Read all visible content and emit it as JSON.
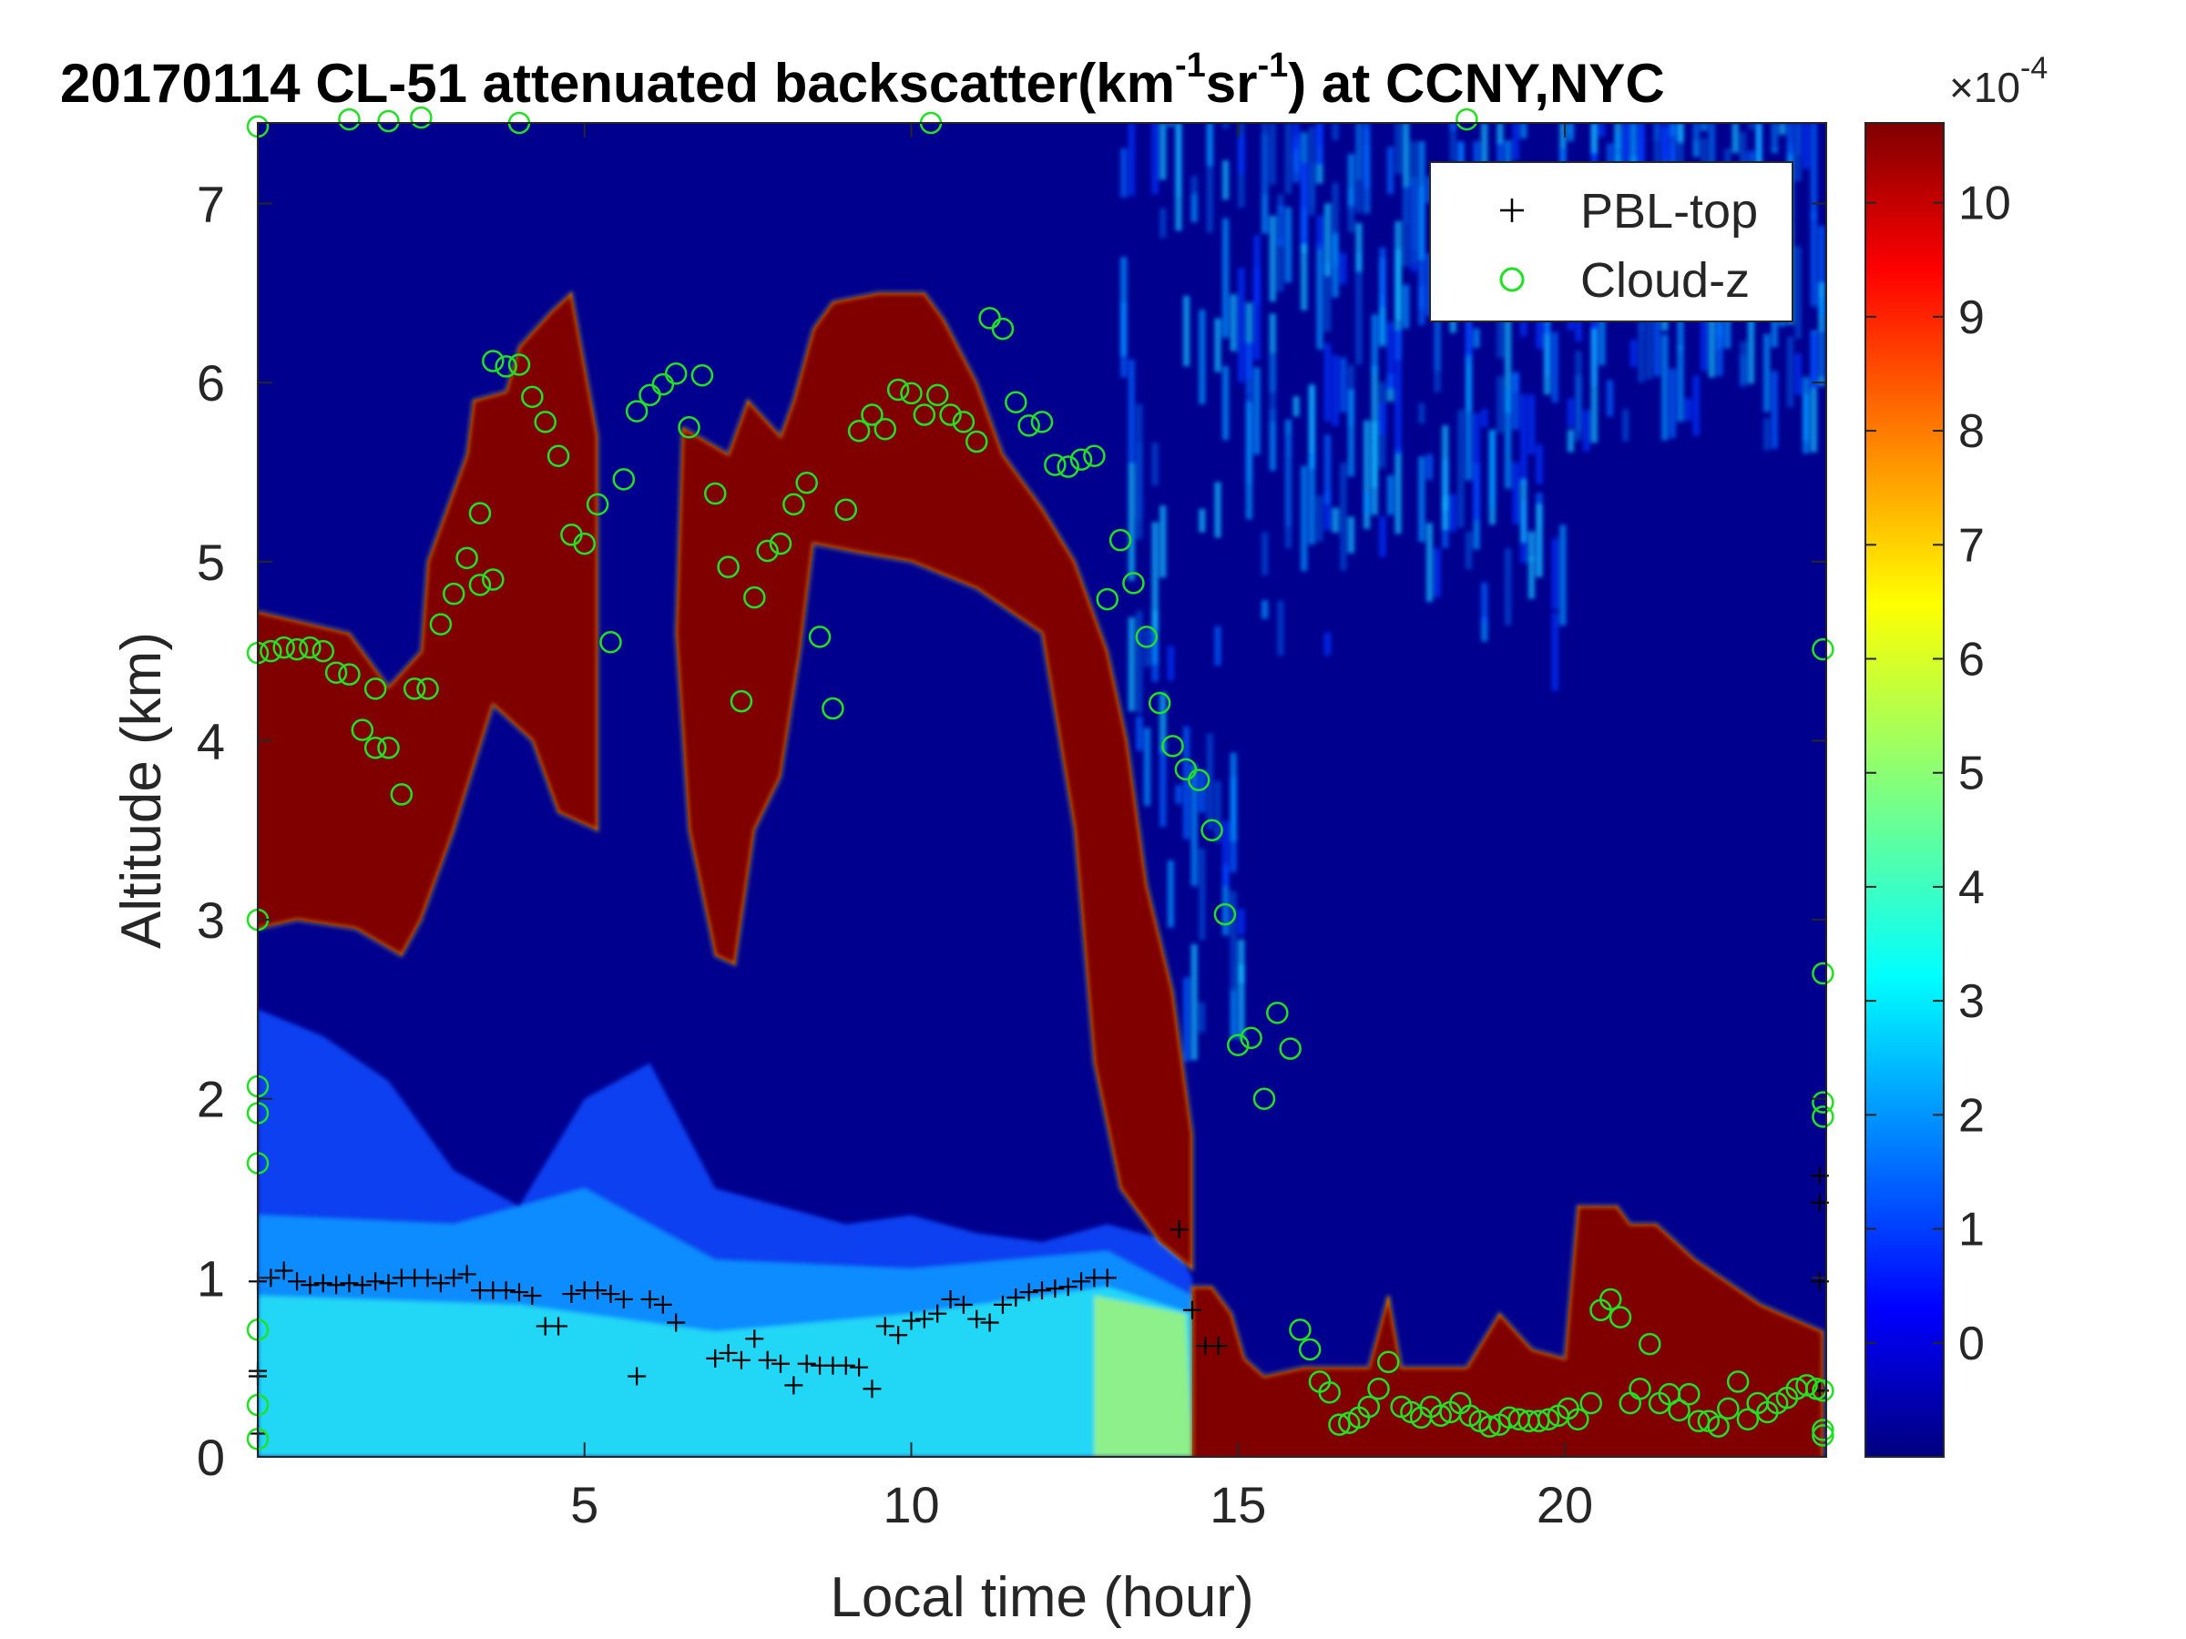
{
  "chart_data": {
    "type": "heatmap",
    "title_main": "20170114  CL-51 attenuated backscatter(km",
    "title_exp1": "-1",
    "title_mid": "sr",
    "title_exp2": "-1",
    "title_end": ") at CCNY,NYC",
    "xlabel": "Local time (hour)",
    "ylabel": "Altitude (km)",
    "xlim": [
      0,
      24
    ],
    "ylim": [
      0,
      7.45
    ],
    "xticks": [
      5,
      10,
      15,
      20
    ],
    "xtick_labels": [
      "5",
      "10",
      "15",
      "20"
    ],
    "yticks": [
      0,
      1,
      2,
      3,
      4,
      5,
      6,
      7
    ],
    "ytick_labels": [
      "0",
      "1",
      "2",
      "3",
      "4",
      "5",
      "6",
      "7"
    ],
    "colorbar": {
      "range": [
        -1,
        10.7
      ],
      "ticks": [
        0,
        1,
        2,
        3,
        4,
        5,
        6,
        7,
        8,
        9,
        10
      ],
      "tick_labels": [
        "0",
        "1",
        "2",
        "3",
        "4",
        "5",
        "6",
        "7",
        "8",
        "9",
        "10"
      ],
      "multiplier_base": "×10",
      "multiplier_exp": "-4",
      "colormap": "jet"
    },
    "legend": {
      "placement": "top-right",
      "entries": [
        {
          "name": "PBL-top",
          "marker": "+",
          "color": "#000000"
        },
        {
          "name": "Cloud-z",
          "marker": "o",
          "color": "#22e022"
        }
      ]
    },
    "series": [
      {
        "name": "PBL-top",
        "points": [
          [
            0.0,
            0.98
          ],
          [
            0.2,
            1.0
          ],
          [
            0.4,
            1.04
          ],
          [
            0.6,
            0.98
          ],
          [
            0.8,
            0.96
          ],
          [
            1.0,
            0.97
          ],
          [
            1.2,
            0.96
          ],
          [
            1.4,
            0.97
          ],
          [
            1.6,
            0.96
          ],
          [
            1.8,
            0.98
          ],
          [
            2.0,
            0.97
          ],
          [
            2.2,
            1.0
          ],
          [
            2.4,
            1.0
          ],
          [
            2.6,
            1.0
          ],
          [
            2.8,
            0.97
          ],
          [
            3.0,
            1.0
          ],
          [
            3.2,
            1.02
          ],
          [
            3.4,
            0.93
          ],
          [
            3.6,
            0.93
          ],
          [
            3.8,
            0.93
          ],
          [
            4.0,
            0.92
          ],
          [
            4.2,
            0.9
          ],
          [
            4.4,
            0.73
          ],
          [
            4.6,
            0.73
          ],
          [
            4.8,
            0.91
          ],
          [
            5.0,
            0.93
          ],
          [
            5.2,
            0.93
          ],
          [
            5.4,
            0.91
          ],
          [
            5.6,
            0.88
          ],
          [
            5.8,
            0.45
          ],
          [
            6.0,
            0.88
          ],
          [
            6.2,
            0.85
          ],
          [
            6.4,
            0.75
          ],
          [
            7.0,
            0.55
          ],
          [
            7.2,
            0.58
          ],
          [
            7.4,
            0.54
          ],
          [
            7.6,
            0.66
          ],
          [
            7.8,
            0.54
          ],
          [
            8.0,
            0.52
          ],
          [
            8.2,
            0.4
          ],
          [
            8.4,
            0.52
          ],
          [
            8.6,
            0.51
          ],
          [
            8.8,
            0.51
          ],
          [
            9.0,
            0.51
          ],
          [
            9.2,
            0.5
          ],
          [
            9.4,
            0.38
          ],
          [
            9.6,
            0.73
          ],
          [
            9.8,
            0.68
          ],
          [
            10.0,
            0.76
          ],
          [
            10.2,
            0.77
          ],
          [
            10.4,
            0.8
          ],
          [
            10.6,
            0.88
          ],
          [
            10.8,
            0.85
          ],
          [
            11.0,
            0.77
          ],
          [
            11.2,
            0.75
          ],
          [
            11.4,
            0.85
          ],
          [
            11.6,
            0.89
          ],
          [
            11.8,
            0.92
          ],
          [
            12.0,
            0.93
          ],
          [
            12.2,
            0.94
          ],
          [
            12.4,
            0.95
          ],
          [
            12.6,
            0.98
          ],
          [
            12.8,
            1.0
          ],
          [
            13.0,
            1.0
          ],
          [
            14.1,
            1.27
          ],
          [
            14.3,
            0.82
          ],
          [
            14.5,
            0.62
          ],
          [
            14.7,
            0.62
          ],
          [
            23.9,
            0.98
          ],
          [
            23.9,
            1.57
          ],
          [
            23.9,
            1.42
          ],
          [
            23.9,
            0.37
          ],
          [
            0.0,
            0.48
          ],
          [
            0.0,
            0.45
          ],
          [
            0.0,
            0.13
          ]
        ]
      },
      {
        "name": "Cloud-z",
        "points": [
          [
            0.0,
            7.43
          ],
          [
            0.0,
            4.49
          ],
          [
            0.2,
            4.5
          ],
          [
            0.4,
            4.52
          ],
          [
            0.6,
            4.51
          ],
          [
            0.8,
            4.52
          ],
          [
            1.0,
            4.5
          ],
          [
            1.2,
            4.38
          ],
          [
            1.4,
            4.37
          ],
          [
            1.8,
            4.29
          ],
          [
            1.6,
            4.06
          ],
          [
            1.8,
            3.96
          ],
          [
            2.0,
            3.96
          ],
          [
            2.2,
            3.7
          ],
          [
            2.4,
            4.29
          ],
          [
            2.6,
            4.29
          ],
          [
            2.8,
            4.65
          ],
          [
            3.0,
            4.82
          ],
          [
            3.2,
            5.02
          ],
          [
            3.4,
            4.87
          ],
          [
            3.6,
            4.9
          ],
          [
            3.4,
            5.27
          ],
          [
            3.6,
            6.12
          ],
          [
            3.8,
            6.09
          ],
          [
            4.0,
            6.1
          ],
          [
            4.2,
            5.92
          ],
          [
            4.4,
            5.78
          ],
          [
            4.6,
            5.59
          ],
          [
            4.8,
            5.15
          ],
          [
            5.0,
            5.1
          ],
          [
            5.2,
            5.32
          ],
          [
            5.4,
            4.55
          ],
          [
            5.6,
            5.46
          ],
          [
            5.8,
            5.84
          ],
          [
            6.0,
            5.93
          ],
          [
            6.2,
            5.99
          ],
          [
            6.4,
            6.05
          ],
          [
            6.6,
            5.75
          ],
          [
            6.8,
            6.04
          ],
          [
            7.0,
            5.38
          ],
          [
            7.2,
            4.97
          ],
          [
            7.4,
            4.22
          ],
          [
            7.6,
            4.8
          ],
          [
            7.8,
            5.06
          ],
          [
            8.0,
            5.1
          ],
          [
            8.2,
            5.32
          ],
          [
            8.4,
            5.44
          ],
          [
            8.6,
            4.58
          ],
          [
            8.8,
            4.18
          ],
          [
            9.0,
            5.29
          ],
          [
            9.2,
            5.73
          ],
          [
            9.4,
            5.82
          ],
          [
            9.6,
            5.74
          ],
          [
            9.8,
            5.96
          ],
          [
            10.0,
            5.94
          ],
          [
            10.2,
            5.82
          ],
          [
            10.4,
            5.93
          ],
          [
            10.6,
            5.82
          ],
          [
            10.8,
            5.78
          ],
          [
            11.0,
            5.67
          ],
          [
            11.2,
            6.36
          ],
          [
            11.4,
            6.3
          ],
          [
            11.6,
            5.89
          ],
          [
            11.8,
            5.76
          ],
          [
            12.0,
            5.78
          ],
          [
            12.2,
            5.54
          ],
          [
            12.4,
            5.53
          ],
          [
            12.6,
            5.57
          ],
          [
            12.8,
            5.59
          ],
          [
            13.0,
            4.79
          ],
          [
            13.2,
            5.12
          ],
          [
            13.4,
            4.88
          ],
          [
            13.6,
            4.58
          ],
          [
            13.8,
            4.21
          ],
          [
            14.0,
            3.97
          ],
          [
            14.2,
            3.84
          ],
          [
            14.4,
            3.78
          ],
          [
            14.6,
            3.5
          ],
          [
            14.8,
            3.03
          ],
          [
            15.0,
            2.3
          ],
          [
            15.2,
            2.34
          ],
          [
            15.4,
            2.0
          ],
          [
            15.6,
            2.48
          ],
          [
            15.8,
            2.28
          ],
          [
            15.95,
            0.71
          ],
          [
            16.1,
            0.6
          ],
          [
            16.25,
            0.42
          ],
          [
            16.4,
            0.36
          ],
          [
            16.55,
            0.18
          ],
          [
            16.7,
            0.19
          ],
          [
            16.85,
            0.22
          ],
          [
            17.0,
            0.28
          ],
          [
            17.15,
            0.38
          ],
          [
            17.3,
            0.53
          ],
          [
            17.5,
            0.28
          ],
          [
            17.65,
            0.25
          ],
          [
            17.8,
            0.22
          ],
          [
            17.95,
            0.28
          ],
          [
            18.1,
            0.23
          ],
          [
            18.25,
            0.25
          ],
          [
            18.4,
            0.3
          ],
          [
            18.55,
            0.23
          ],
          [
            18.7,
            0.2
          ],
          [
            18.85,
            0.17
          ],
          [
            19.0,
            0.18
          ],
          [
            19.15,
            0.22
          ],
          [
            19.3,
            0.21
          ],
          [
            19.45,
            0.2
          ],
          [
            19.6,
            0.2
          ],
          [
            19.75,
            0.21
          ],
          [
            19.9,
            0.23
          ],
          [
            20.05,
            0.27
          ],
          [
            20.2,
            0.21
          ],
          [
            20.4,
            0.3
          ],
          [
            20.55,
            0.82
          ],
          [
            20.7,
            0.88
          ],
          [
            20.85,
            0.78
          ],
          [
            21.0,
            0.3
          ],
          [
            21.15,
            0.38
          ],
          [
            21.3,
            0.63
          ],
          [
            21.45,
            0.3
          ],
          [
            21.6,
            0.35
          ],
          [
            21.75,
            0.26
          ],
          [
            21.9,
            0.35
          ],
          [
            22.05,
            0.2
          ],
          [
            22.2,
            0.2
          ],
          [
            22.35,
            0.17
          ],
          [
            22.5,
            0.27
          ],
          [
            22.65,
            0.42
          ],
          [
            22.8,
            0.21
          ],
          [
            22.95,
            0.3
          ],
          [
            23.1,
            0.25
          ],
          [
            23.25,
            0.3
          ],
          [
            23.4,
            0.33
          ],
          [
            23.55,
            0.38
          ],
          [
            23.7,
            0.4
          ],
          [
            23.85,
            0.38
          ],
          [
            23.95,
            0.37
          ],
          [
            23.95,
            4.51
          ],
          [
            23.95,
            2.7
          ],
          [
            23.95,
            1.9
          ],
          [
            23.95,
            1.98
          ],
          [
            23.95,
            0.15
          ],
          [
            23.95,
            0.12
          ],
          [
            0.0,
            2.07
          ],
          [
            0.0,
            1.92
          ],
          [
            0.0,
            1.64
          ],
          [
            0.0,
            0.71
          ],
          [
            0.0,
            0.29
          ],
          [
            0.0,
            0.1
          ],
          [
            0.0,
            3.0
          ],
          [
            1.4,
            7.47
          ],
          [
            2.0,
            7.46
          ],
          [
            2.5,
            7.48
          ],
          [
            4.0,
            7.45
          ],
          [
            10.3,
            7.45
          ],
          [
            18.5,
            7.47
          ]
        ]
      }
    ]
  }
}
